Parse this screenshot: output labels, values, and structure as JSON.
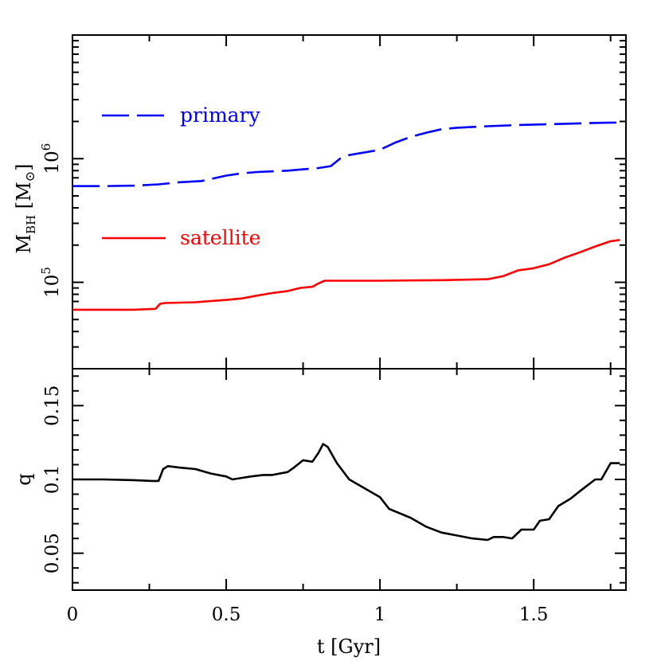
{
  "chart_data": [
    {
      "type": "line",
      "panel": "top",
      "ylabel": {
        "main": "M",
        "sub": "BH",
        "unit_open": " [M",
        "unit_sym": "⊙",
        "unit_close": "]"
      },
      "yscale": "log",
      "ylim": [
        20000,
        10000000
      ],
      "xlim": [
        0,
        1.8
      ],
      "yticklabels": [
        {
          "value": 100000,
          "base": "10",
          "exp": "5"
        },
        {
          "value": 1000000,
          "base": "10",
          "exp": "6"
        }
      ],
      "legend": {
        "placement": "left"
      },
      "series": [
        {
          "name": "primary",
          "color": "#0000ff",
          "style": "dashed",
          "x": [
            0,
            0.1,
            0.2,
            0.28,
            0.35,
            0.42,
            0.5,
            0.55,
            0.6,
            0.7,
            0.75,
            0.8,
            0.84,
            0.87,
            0.9,
            1.0,
            1.05,
            1.1,
            1.15,
            1.2,
            1.25,
            1.35,
            1.45,
            1.55,
            1.65,
            1.72,
            1.78
          ],
          "y": [
            600000,
            600000,
            605000,
            620000,
            645000,
            660000,
            730000,
            760000,
            780000,
            800000,
            820000,
            840000,
            870000,
            1000000,
            1070000,
            1180000,
            1350000,
            1500000,
            1620000,
            1730000,
            1780000,
            1830000,
            1870000,
            1900000,
            1930000,
            1950000,
            1960000
          ]
        },
        {
          "name": "satellite",
          "color": "#ff0000",
          "style": "solid",
          "x": [
            0,
            0.1,
            0.2,
            0.27,
            0.285,
            0.3,
            0.4,
            0.5,
            0.55,
            0.6,
            0.65,
            0.7,
            0.74,
            0.78,
            0.8,
            0.82,
            1.0,
            1.2,
            1.35,
            1.4,
            1.45,
            1.5,
            1.55,
            1.6,
            1.65,
            1.7,
            1.75,
            1.78
          ],
          "y": [
            60000,
            60000,
            60000,
            61000,
            67000,
            68000,
            69000,
            72000,
            74000,
            78000,
            82000,
            85000,
            90000,
            92000,
            98000,
            103000,
            103000,
            104000,
            106000,
            112000,
            125000,
            130000,
            140000,
            158000,
            175000,
            195000,
            215000,
            220000
          ]
        }
      ]
    },
    {
      "type": "line",
      "panel": "bottom",
      "xlabel": "t [Gyr]",
      "ylabel": "q",
      "xlim": [
        0,
        1.8
      ],
      "ylim": [
        0.025,
        0.175
      ],
      "xticks": [
        0,
        0.5,
        1,
        1.5
      ],
      "xticklabels": [
        "0",
        "0.5",
        "1",
        "1.5"
      ],
      "yticks": [
        0.05,
        0.1,
        0.15
      ],
      "yticklabels": [
        "0.05",
        "0.1",
        "0.15"
      ],
      "series": [
        {
          "color": "#000000",
          "style": "solid",
          "x": [
            0,
            0.1,
            0.2,
            0.26,
            0.28,
            0.295,
            0.31,
            0.35,
            0.4,
            0.45,
            0.5,
            0.52,
            0.55,
            0.58,
            0.62,
            0.65,
            0.7,
            0.72,
            0.75,
            0.78,
            0.8,
            0.815,
            0.83,
            0.86,
            0.9,
            0.95,
            1.0,
            1.03,
            1.1,
            1.15,
            1.2,
            1.25,
            1.3,
            1.35,
            1.37,
            1.4,
            1.43,
            1.46,
            1.5,
            1.52,
            1.55,
            1.58,
            1.62,
            1.65,
            1.7,
            1.72,
            1.75,
            1.78
          ],
          "y": [
            0.1,
            0.1,
            0.0995,
            0.099,
            0.099,
            0.107,
            0.109,
            0.108,
            0.107,
            0.104,
            0.102,
            0.1,
            0.101,
            0.102,
            0.103,
            0.103,
            0.105,
            0.108,
            0.113,
            0.112,
            0.118,
            0.124,
            0.122,
            0.111,
            0.1,
            0.094,
            0.088,
            0.08,
            0.074,
            0.068,
            0.064,
            0.062,
            0.06,
            0.059,
            0.061,
            0.061,
            0.06,
            0.066,
            0.066,
            0.072,
            0.073,
            0.082,
            0.087,
            0.092,
            0.1,
            0.1,
            0.111,
            0.111
          ]
        }
      ]
    }
  ]
}
